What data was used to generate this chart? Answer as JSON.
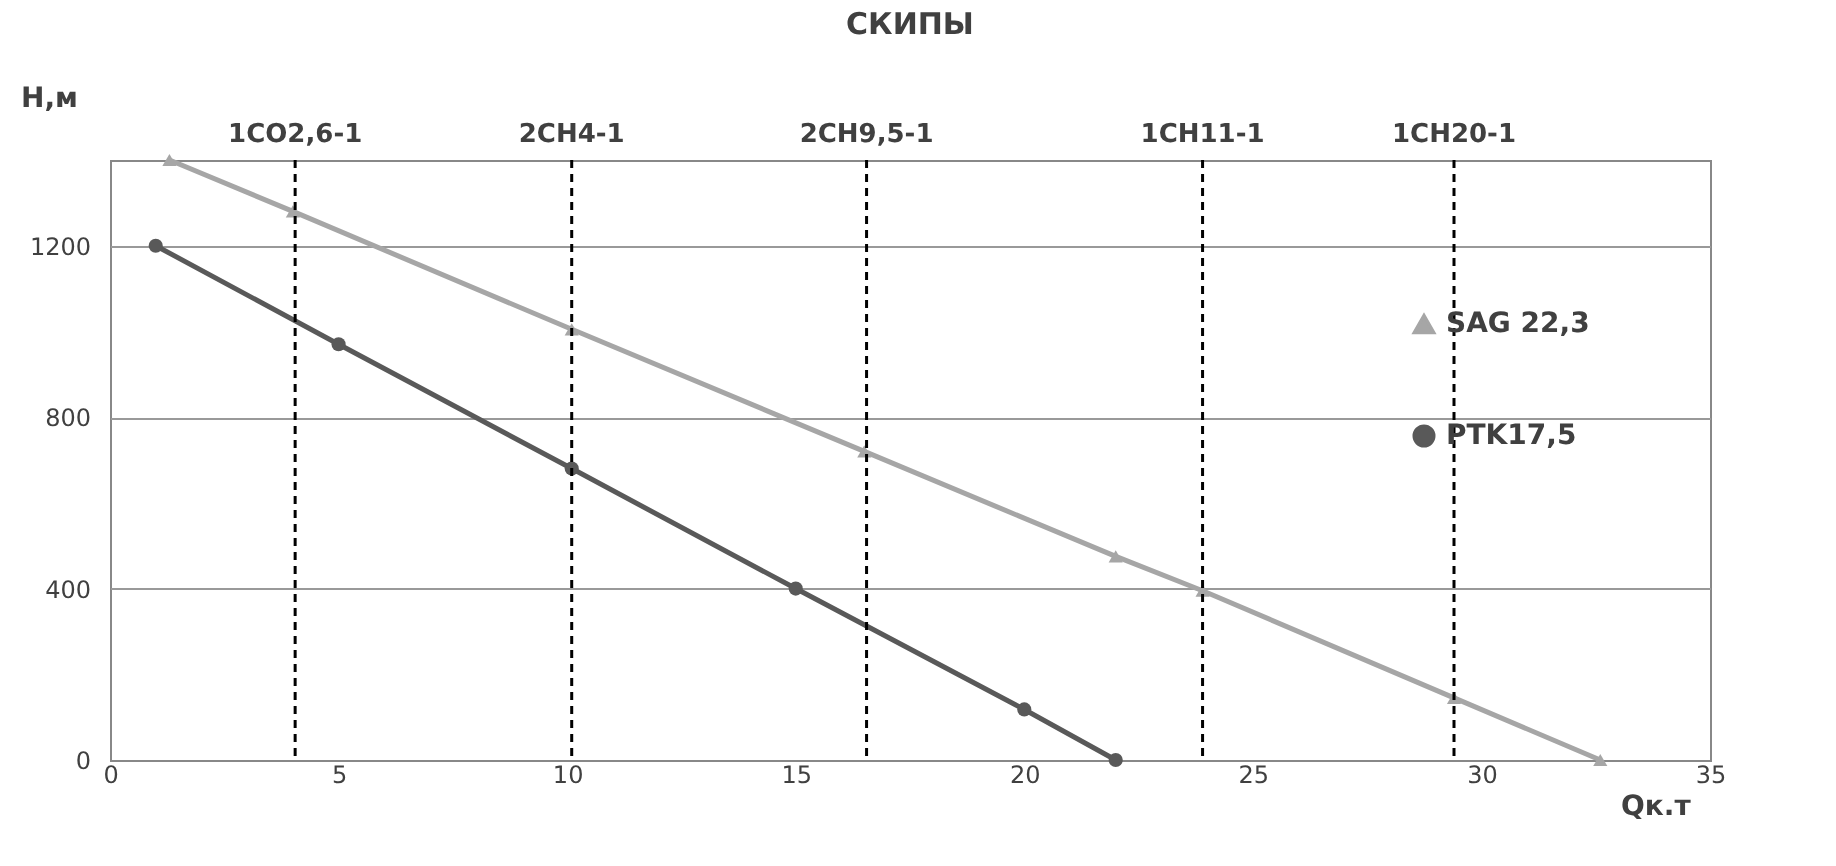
{
  "chart_data": {
    "type": "line",
    "title": "СКИПЫ",
    "xlabel": "Qк.т",
    "ylabel": "Н,м",
    "xlim": [
      0,
      35
    ],
    "xticks": [
      0,
      5,
      10,
      15,
      20,
      25,
      30,
      35
    ],
    "ylim": [
      0,
      1400
    ],
    "yticks": [
      0,
      400,
      800,
      1200
    ],
    "grid": "y",
    "legend": "right",
    "line_style": "solid",
    "series": [
      {
        "name": "SAG 22,3",
        "color": "#a6a6a6",
        "marker": "triangle",
        "x": [
          1.3,
          4.0,
          10.1,
          16.5,
          22.0,
          23.9,
          29.4,
          32.6
        ],
        "values": [
          1400,
          1280,
          1005,
          720,
          475,
          395,
          145,
          0
        ]
      },
      {
        "name": "PTK17,5",
        "color": "#595959",
        "marker": "circle",
        "x": [
          1,
          5,
          10.1,
          15,
          20,
          22
        ],
        "values": [
          1200,
          970,
          680,
          400,
          118,
          0
        ]
      }
    ],
    "ref_lines": [
      {
        "axis": "x",
        "value": 4.05,
        "label": "1CO2,6-1",
        "color": "#000000",
        "line_style": "dashed"
      },
      {
        "axis": "x",
        "value": 10.1,
        "label": "2CH4-1",
        "color": "#000000",
        "line_style": "dashed"
      },
      {
        "axis": "x",
        "value": 16.55,
        "label": "2CH9,5-1",
        "color": "#000000",
        "line_style": "dashed"
      },
      {
        "axis": "x",
        "value": 23.9,
        "label": "1CH11-1",
        "color": "#000000",
        "line_style": "dashed"
      },
      {
        "axis": "x",
        "value": 29.4,
        "label": "1CH20-1",
        "color": "#000000",
        "line_style": "dashed"
      }
    ]
  }
}
